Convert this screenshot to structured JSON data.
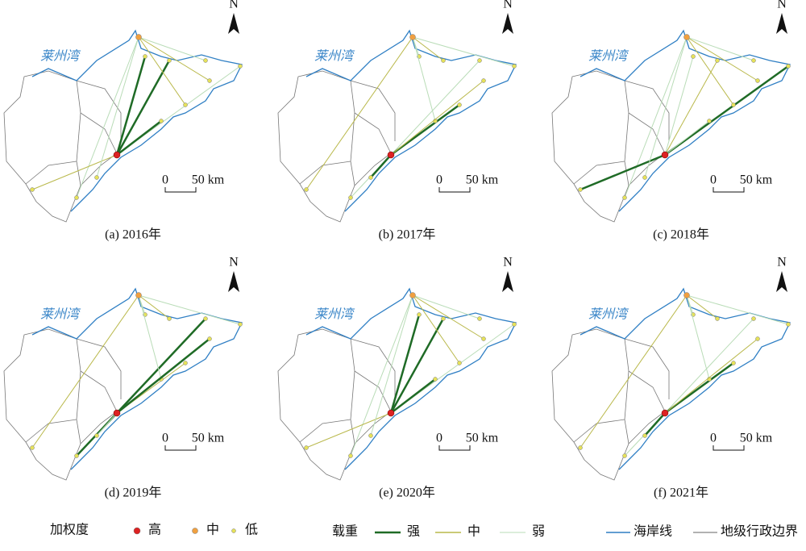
{
  "panels": [
    {
      "caption": "(a) 2016年",
      "bay_label": "莱州湾",
      "north": "N",
      "scale_zero": "0",
      "scale_length": "50 km"
    },
    {
      "caption": "(b) 2017年",
      "bay_label": "莱州湾",
      "north": "N",
      "scale_zero": "0",
      "scale_length": "50 km"
    },
    {
      "caption": "(c) 2018年",
      "bay_label": "莱州湾",
      "north": "N",
      "scale_zero": "0",
      "scale_length": "50 km"
    },
    {
      "caption": "(d) 2019年",
      "bay_label": "莱州湾",
      "north": "N",
      "scale_zero": "0",
      "scale_length": "50 km"
    },
    {
      "caption": "(e) 2020年",
      "bay_label": "莱州湾",
      "north": "N",
      "scale_zero": "0",
      "scale_length": "50 km"
    },
    {
      "caption": "(f) 2021年",
      "bay_label": "莱州湾",
      "north": "N",
      "scale_zero": "0",
      "scale_length": "50 km"
    }
  ],
  "legend": {
    "weighted_degree": {
      "title": "加权度",
      "items": [
        "高",
        "中",
        "低"
      ]
    },
    "load": {
      "title": "载重",
      "items": [
        "强",
        "中",
        "弱"
      ]
    },
    "boundary": {
      "items": [
        "海岸线",
        "地级行政边界"
      ]
    }
  }
}
